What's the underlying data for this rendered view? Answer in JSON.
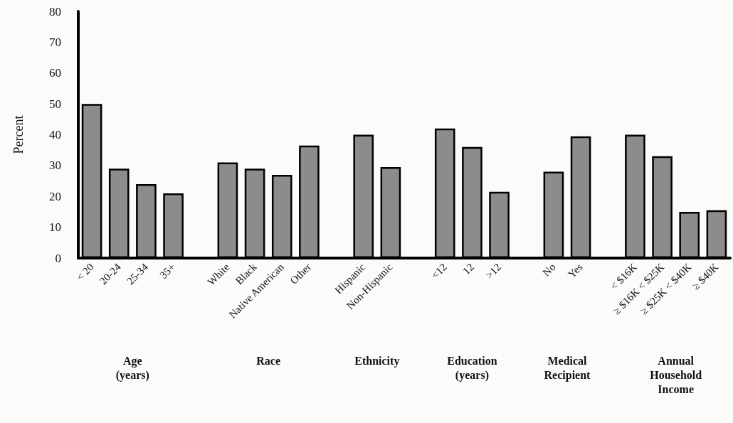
{
  "chart_data": {
    "type": "bar",
    "ylabel": "Percent",
    "categories": [
      "< 20",
      "20-24",
      "25-34",
      "35+",
      null,
      "White",
      "Black",
      "Native American",
      "Other",
      null,
      "Hispanic",
      "Non-Hispanic",
      null,
      "<12",
      "12",
      ">12",
      null,
      "No",
      "Yes",
      null,
      "< $16K",
      "≥ $16K < $25K",
      "≥ $25K < $40K",
      "≥ $40K"
    ],
    "values": [
      50,
      29,
      24,
      21,
      null,
      31,
      29,
      27,
      36.5,
      null,
      40,
      29.5,
      null,
      42,
      36,
      21.5,
      null,
      28,
      39.5,
      null,
      40,
      33,
      15,
      15.5
    ],
    "color": "#8c8c8c",
    "ylim": [
      0,
      80
    ],
    "yticks": [
      0,
      10,
      20,
      30,
      40,
      50,
      60,
      70,
      80
    ],
    "annotations": [
      "Age\n(years)",
      "Race",
      "Ethnicity",
      "Education\n(years)",
      "Medical\nRecipient",
      "Annual\nHousehold\nIncome"
    ]
  }
}
